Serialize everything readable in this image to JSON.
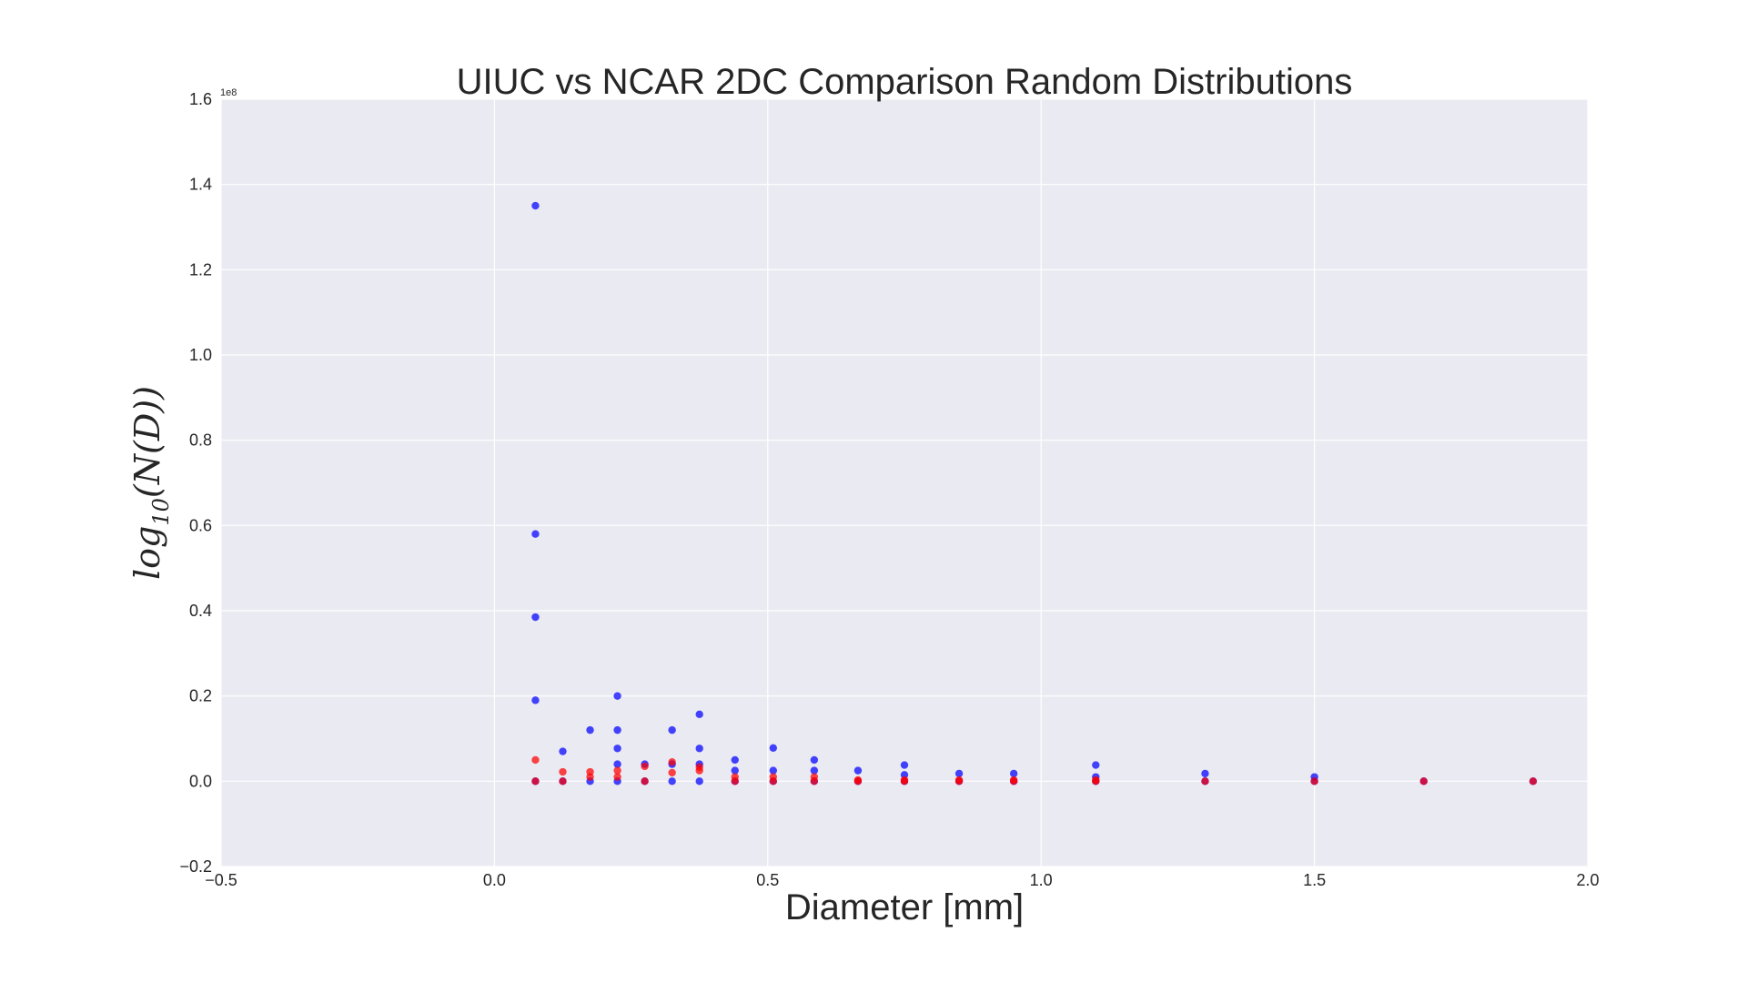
{
  "chart_data": {
    "type": "scatter",
    "title": "UIUC vs NCAR 2DC Comparison Random Distributions",
    "xlabel": "Diameter [mm]",
    "ylabel": "log10(N(D))",
    "y_offset_label": "1e8",
    "xlim": [
      -0.5,
      2.0
    ],
    "ylim": [
      -0.2,
      1.6
    ],
    "x_ticks": [
      -0.5,
      0.0,
      0.5,
      1.0,
      1.5,
      2.0
    ],
    "x_tick_labels": [
      "−0.5",
      "0.0",
      "0.5",
      "1.0",
      "1.5",
      "2.0"
    ],
    "y_ticks": [
      -0.2,
      0.0,
      0.2,
      0.4,
      0.6,
      0.8,
      1.0,
      1.2,
      1.4,
      1.6
    ],
    "y_tick_labels": [
      "−0.2",
      "0.0",
      "0.2",
      "0.4",
      "0.6",
      "0.8",
      "1.0",
      "1.2",
      "1.4",
      "1.6"
    ],
    "grid": true,
    "background": "#EAEAF2",
    "grid_color": "#FFFFFF",
    "series": [
      {
        "color": "#0000FF",
        "points": [
          [
            0.075,
            1.35
          ],
          [
            0.075,
            0.58
          ],
          [
            0.075,
            0.385
          ],
          [
            0.075,
            0.19
          ],
          [
            0.075,
            0.0
          ],
          [
            0.125,
            0.07
          ],
          [
            0.125,
            0.0
          ],
          [
            0.175,
            0.12
          ],
          [
            0.175,
            0.0
          ],
          [
            0.225,
            0.2
          ],
          [
            0.225,
            0.12
          ],
          [
            0.225,
            0.077
          ],
          [
            0.225,
            0.04
          ],
          [
            0.225,
            0.0
          ],
          [
            0.275,
            0.04
          ],
          [
            0.275,
            0.0
          ],
          [
            0.325,
            0.12
          ],
          [
            0.325,
            0.04
          ],
          [
            0.325,
            0.0
          ],
          [
            0.375,
            0.157
          ],
          [
            0.375,
            0.077
          ],
          [
            0.375,
            0.04
          ],
          [
            0.375,
            0.0
          ],
          [
            0.44,
            0.05
          ],
          [
            0.44,
            0.025
          ],
          [
            0.44,
            0.0
          ],
          [
            0.51,
            0.078
          ],
          [
            0.51,
            0.025
          ],
          [
            0.51,
            0.0
          ],
          [
            0.585,
            0.05
          ],
          [
            0.585,
            0.025
          ],
          [
            0.585,
            0.0
          ],
          [
            0.665,
            0.025
          ],
          [
            0.665,
            0.0
          ],
          [
            0.75,
            0.038
          ],
          [
            0.75,
            0.015
          ],
          [
            0.75,
            0.0
          ],
          [
            0.85,
            0.018
          ],
          [
            0.85,
            0.0
          ],
          [
            0.95,
            0.018
          ],
          [
            0.95,
            0.0
          ],
          [
            1.1,
            0.038
          ],
          [
            1.1,
            0.01
          ],
          [
            1.1,
            0.0
          ],
          [
            1.3,
            0.018
          ],
          [
            1.3,
            0.0
          ],
          [
            1.5,
            0.01
          ],
          [
            1.5,
            0.0
          ],
          [
            1.7,
            0.0
          ],
          [
            1.9,
            0.0
          ]
        ]
      },
      {
        "color": "#FF0000",
        "points": [
          [
            0.075,
            0.05
          ],
          [
            0.075,
            0.0
          ],
          [
            0.125,
            0.022
          ],
          [
            0.125,
            0.0
          ],
          [
            0.175,
            0.022
          ],
          [
            0.175,
            0.01
          ],
          [
            0.225,
            0.025
          ],
          [
            0.225,
            0.01
          ],
          [
            0.275,
            0.035
          ],
          [
            0.275,
            0.0
          ],
          [
            0.325,
            0.045
          ],
          [
            0.325,
            0.02
          ],
          [
            0.375,
            0.033
          ],
          [
            0.375,
            0.025
          ],
          [
            0.44,
            0.01
          ],
          [
            0.44,
            0.0
          ],
          [
            0.51,
            0.01
          ],
          [
            0.51,
            0.0
          ],
          [
            0.585,
            0.01
          ],
          [
            0.585,
            0.0
          ],
          [
            0.665,
            0.003
          ],
          [
            0.665,
            0.0
          ],
          [
            0.75,
            0.003
          ],
          [
            0.75,
            0.0
          ],
          [
            0.85,
            0.003
          ],
          [
            0.85,
            0.0
          ],
          [
            0.95,
            0.003
          ],
          [
            0.95,
            0.0
          ],
          [
            1.1,
            0.003
          ],
          [
            1.1,
            0.0
          ],
          [
            1.3,
            0.0
          ],
          [
            1.5,
            0.0
          ],
          [
            1.7,
            0.0
          ],
          [
            1.9,
            0.0
          ]
        ]
      }
    ]
  }
}
